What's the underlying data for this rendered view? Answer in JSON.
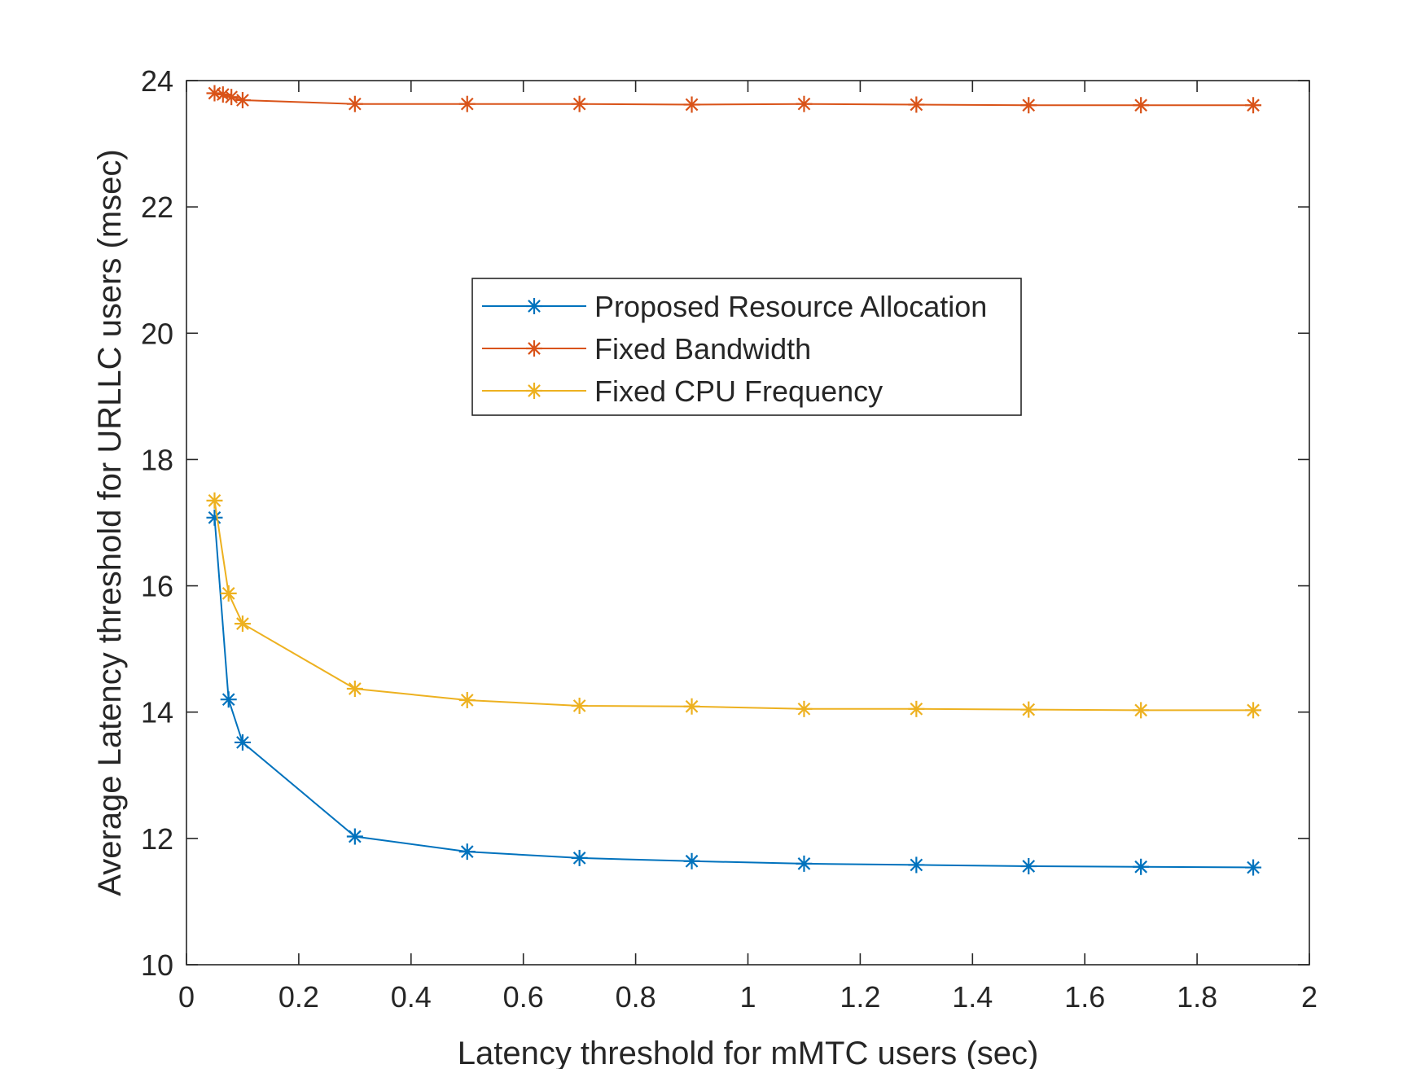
{
  "chart_data": {
    "type": "line",
    "title": "",
    "xlabel": "Latency threshold for mMTC users (sec)",
    "ylabel": "Average Latency threshold for URLLC users (msec)",
    "xlim": [
      0,
      2
    ],
    "ylim": [
      10,
      24
    ],
    "xticks": [
      0,
      0.2,
      0.4,
      0.6,
      0.8,
      1,
      1.2,
      1.4,
      1.6,
      1.8,
      2
    ],
    "xtick_labels": [
      "0",
      "0.2",
      "0.4",
      "0.6",
      "0.8",
      "1",
      "1.2",
      "1.4",
      "1.6",
      "1.8",
      "2"
    ],
    "yticks": [
      10,
      12,
      14,
      16,
      18,
      20,
      22,
      24
    ],
    "ytick_labels": [
      "10",
      "12",
      "14",
      "16",
      "18",
      "20",
      "22",
      "24"
    ],
    "grid": false,
    "box": true,
    "legend_position": "center, upper half of plot",
    "marker": "asterisk",
    "series": [
      {
        "name": "Proposed Resource Allocation",
        "color": "#0072BD",
        "x": [
          0.05,
          0.075,
          0.1,
          0.3,
          0.5,
          0.7,
          0.9,
          1.1,
          1.3,
          1.5,
          1.7,
          1.9
        ],
        "y": [
          17.08,
          14.2,
          13.52,
          12.03,
          11.79,
          11.69,
          11.64,
          11.6,
          11.58,
          11.56,
          11.55,
          11.54
        ]
      },
      {
        "name": "Fixed Bandwidth",
        "color": "#D95319",
        "x": [
          0.05,
          0.065,
          0.08,
          0.1,
          0.3,
          0.5,
          0.7,
          0.9,
          1.1,
          1.3,
          1.5,
          1.7,
          1.9
        ],
        "y": [
          23.8,
          23.78,
          23.74,
          23.69,
          23.63,
          23.63,
          23.63,
          23.62,
          23.63,
          23.62,
          23.61,
          23.61,
          23.61
        ]
      },
      {
        "name": "Fixed CPU Frequency",
        "color": "#EDB120",
        "x": [
          0.05,
          0.075,
          0.1,
          0.3,
          0.5,
          0.7,
          0.9,
          1.1,
          1.3,
          1.5,
          1.7,
          1.9
        ],
        "y": [
          17.35,
          15.88,
          15.4,
          14.37,
          14.19,
          14.1,
          14.09,
          14.05,
          14.05,
          14.04,
          14.03,
          14.03
        ]
      }
    ]
  }
}
